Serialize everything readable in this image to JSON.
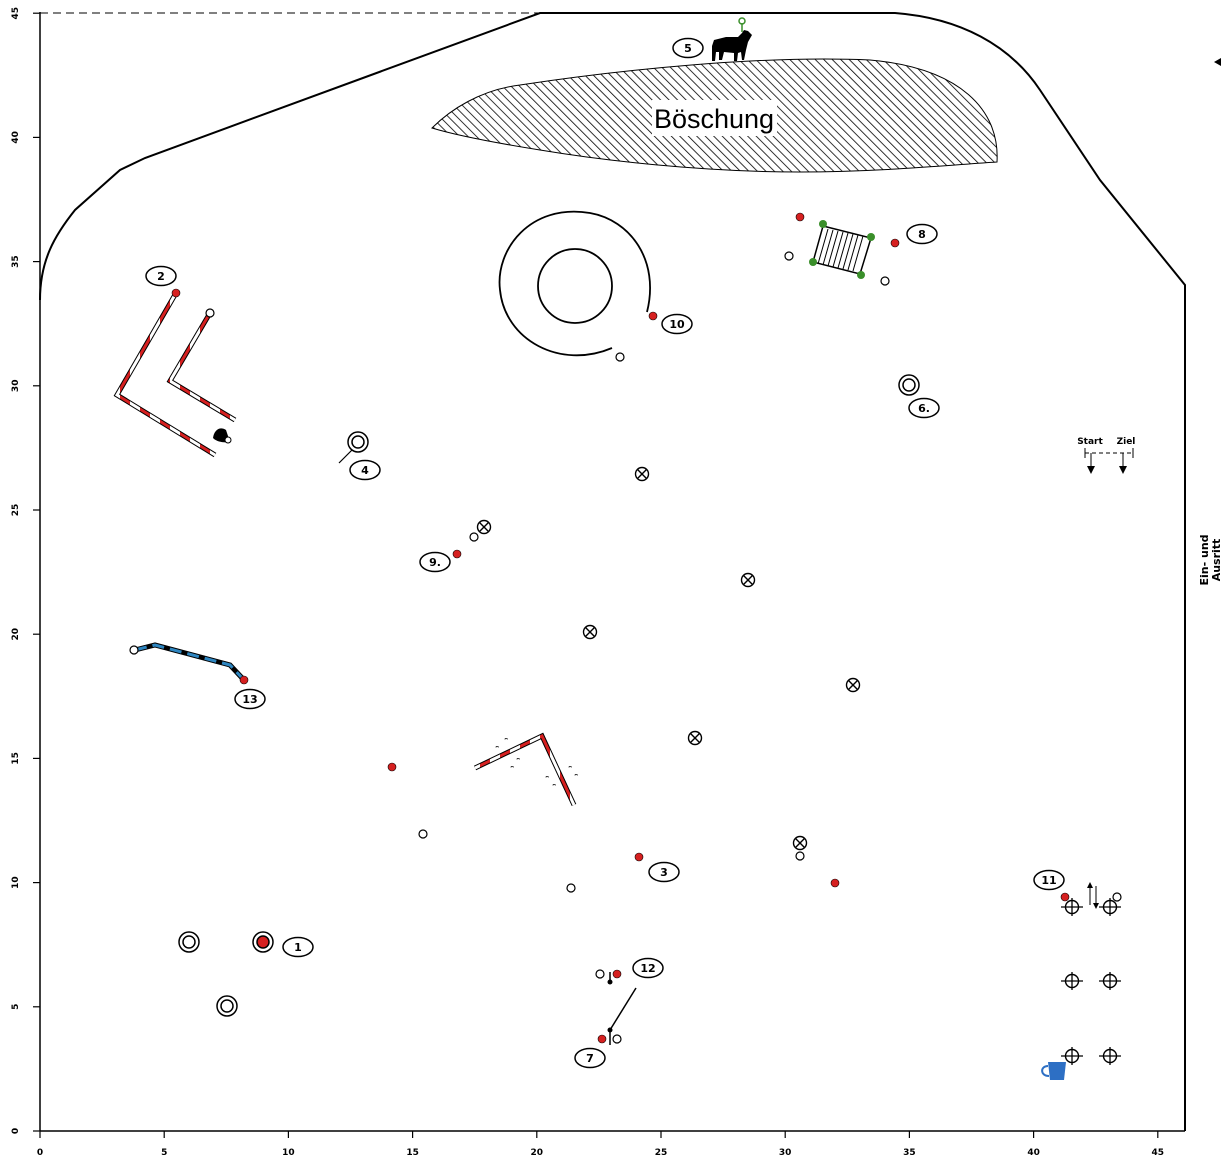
{
  "axis": {
    "x_ticks": [
      "0",
      "5",
      "10",
      "15",
      "20",
      "25",
      "30",
      "35",
      "40",
      "45"
    ],
    "y_ticks": [
      "0",
      "5",
      "10",
      "15",
      "20",
      "25",
      "30",
      "35",
      "40",
      "45"
    ]
  },
  "labels": {
    "embankment": "Böschung",
    "start": "Start",
    "finish": "Ziel",
    "entrance_line1": "Ein- und",
    "entrance_line2": "Ausritt"
  },
  "obstacles": [
    "1",
    "2",
    "3",
    "4",
    "5",
    "6.",
    "7",
    "8",
    "9.",
    "10",
    "11",
    "12",
    "13"
  ],
  "colors": {
    "red": "#d62020",
    "blue": "#2e86c1",
    "green": "#3a8f2a",
    "cup": "#2d6fc4"
  }
}
